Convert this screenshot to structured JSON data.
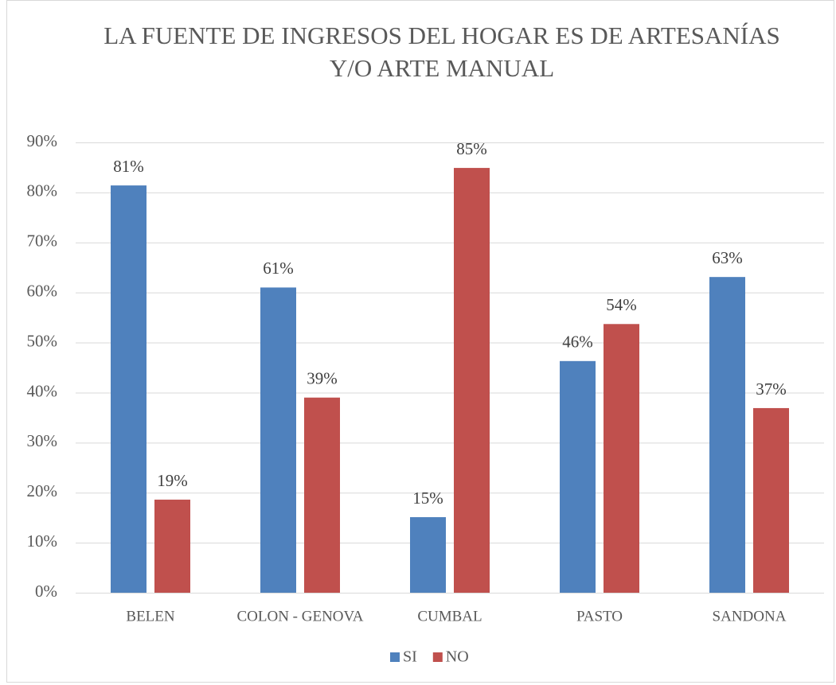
{
  "chart_data": {
    "type": "bar",
    "title": [
      "LA FUENTE DE INGRESOS DEL HOGAR ES DE ARTESANÍAS",
      "Y/O ARTE MANUAL"
    ],
    "categories": [
      "BELEN",
      "COLON - GENOVA",
      "CUMBAL",
      "PASTO",
      "SANDONA"
    ],
    "series": [
      {
        "name": "SI",
        "color": "#4f81bd",
        "values": [
          81.4,
          61.0,
          15.1,
          46.3,
          63.1
        ],
        "value_labels": [
          "81%",
          "61%",
          "15%",
          "46%",
          "63%"
        ]
      },
      {
        "name": "NO",
        "color": "#c0504d",
        "values": [
          18.6,
          39.0,
          84.9,
          53.7,
          36.9
        ],
        "value_labels": [
          "19%",
          "39%",
          "85%",
          "54%",
          "37%"
        ]
      }
    ],
    "ylim": [
      0,
      90
    ],
    "yticks": [
      {
        "value": 0,
        "label": "0%"
      },
      {
        "value": 10,
        "label": "10%"
      },
      {
        "value": 20,
        "label": "20%"
      },
      {
        "value": 30,
        "label": "30%"
      },
      {
        "value": 40,
        "label": "40%"
      },
      {
        "value": 50,
        "label": "50%"
      },
      {
        "value": 60,
        "label": "60%"
      },
      {
        "value": 70,
        "label": "70%"
      },
      {
        "value": 80,
        "label": "80%"
      },
      {
        "value": 90,
        "label": "90%"
      }
    ],
    "grid": true,
    "legend": "bottom"
  }
}
